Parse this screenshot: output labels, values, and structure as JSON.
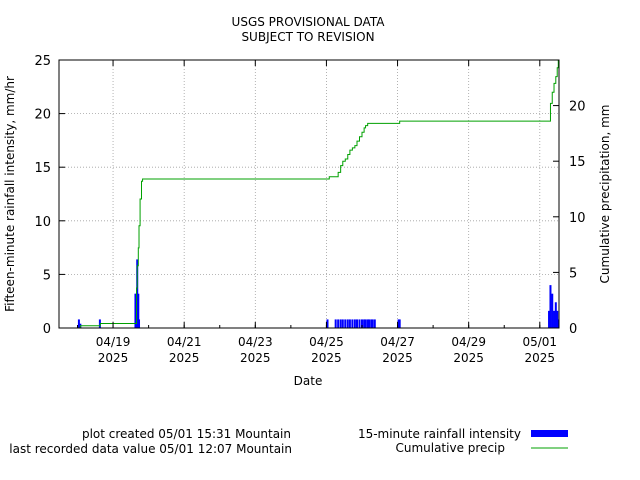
{
  "chart_data": {
    "type": "bar+line",
    "title_lines": [
      "USGS PROVISIONAL DATA",
      "SUBJECT TO REVISION"
    ],
    "xlabel": "Date",
    "ylabel_left": "Fifteen-minute rainfall intensity, mm/hr",
    "ylabel_right": "Cumulative precipitation, mm",
    "x_range_days": [
      0,
      14.06
    ],
    "ylim_left": [
      0,
      25
    ],
    "ylim_right": [
      0,
      24.1
    ],
    "yticks_left": [
      0,
      5,
      10,
      15,
      20,
      25
    ],
    "yticks_right": [
      0,
      5,
      10,
      15,
      20
    ],
    "x_ticks": [
      {
        "day": 1.52,
        "label1": "04/19",
        "label2": "2025"
      },
      {
        "day": 3.52,
        "label1": "04/21",
        "label2": "2025"
      },
      {
        "day": 5.52,
        "label1": "04/23",
        "label2": "2025"
      },
      {
        "day": 7.52,
        "label1": "04/25",
        "label2": "2025"
      },
      {
        "day": 9.52,
        "label1": "04/27",
        "label2": "2025"
      },
      {
        "day": 11.52,
        "label1": "04/29",
        "label2": "2025"
      },
      {
        "day": 13.52,
        "label1": "05/01",
        "label2": "2025"
      }
    ],
    "grid": true,
    "series": [
      {
        "name": "15-minute rainfall intensity",
        "kind": "bar",
        "color": "#0000ff",
        "points": [
          [
            0.56,
            0.8
          ],
          [
            0.6,
            0.4
          ],
          [
            1.15,
            0.8
          ],
          [
            2.15,
            3.2
          ],
          [
            2.18,
            3.2
          ],
          [
            2.2,
            6.4
          ],
          [
            2.23,
            3.2
          ],
          [
            2.25,
            0.8
          ],
          [
            7.55,
            0.8
          ],
          [
            7.78,
            0.8
          ],
          [
            7.85,
            0.8
          ],
          [
            7.92,
            0.8
          ],
          [
            7.98,
            0.8
          ],
          [
            8.05,
            0.8
          ],
          [
            8.12,
            0.8
          ],
          [
            8.18,
            0.8
          ],
          [
            8.25,
            0.8
          ],
          [
            8.32,
            0.8
          ],
          [
            8.38,
            0.8
          ],
          [
            8.45,
            0.8
          ],
          [
            8.52,
            0.8
          ],
          [
            8.58,
            0.8
          ],
          [
            8.62,
            0.8
          ],
          [
            8.68,
            0.8
          ],
          [
            8.72,
            0.8
          ],
          [
            8.78,
            0.8
          ],
          [
            8.82,
            0.8
          ],
          [
            8.88,
            0.8
          ],
          [
            9.55,
            0.8
          ],
          [
            9.58,
            0.8
          ],
          [
            13.78,
            1.6
          ],
          [
            13.82,
            4.0
          ],
          [
            13.87,
            3.2
          ],
          [
            13.92,
            1.6
          ],
          [
            13.97,
            2.4
          ],
          [
            14.01,
            1.6
          ],
          [
            14.04,
            0.8
          ]
        ]
      },
      {
        "name": "Cumulative precip",
        "kind": "line",
        "color": "#00a000",
        "points": [
          [
            0.56,
            0.0
          ],
          [
            0.6,
            0.2
          ],
          [
            1.15,
            0.2
          ],
          [
            1.16,
            0.4
          ],
          [
            2.15,
            0.4
          ],
          [
            2.18,
            3.6
          ],
          [
            2.2,
            5.6
          ],
          [
            2.23,
            7.2
          ],
          [
            2.25,
            9.2
          ],
          [
            2.28,
            11.6
          ],
          [
            2.32,
            13.2
          ],
          [
            2.35,
            13.4
          ],
          [
            7.55,
            13.4
          ],
          [
            7.6,
            13.6
          ],
          [
            7.78,
            13.6
          ],
          [
            7.85,
            14.0
          ],
          [
            7.92,
            14.6
          ],
          [
            7.98,
            15.0
          ],
          [
            8.05,
            15.2
          ],
          [
            8.12,
            15.6
          ],
          [
            8.18,
            16.0
          ],
          [
            8.25,
            16.2
          ],
          [
            8.32,
            16.4
          ],
          [
            8.38,
            16.8
          ],
          [
            8.45,
            17.2
          ],
          [
            8.52,
            17.6
          ],
          [
            8.58,
            18.0
          ],
          [
            8.62,
            18.2
          ],
          [
            8.68,
            18.4
          ],
          [
            9.55,
            18.4
          ],
          [
            9.58,
            18.6
          ],
          [
            13.78,
            18.6
          ],
          [
            13.82,
            20.2
          ],
          [
            13.87,
            21.2
          ],
          [
            13.92,
            22.0
          ],
          [
            13.97,
            22.6
          ],
          [
            14.01,
            23.4
          ],
          [
            14.04,
            24.1
          ]
        ]
      }
    ],
    "legend": [
      {
        "label": "15-minute rainfall intensity",
        "kind": "bar",
        "color": "#0000ff"
      },
      {
        "label": "Cumulative precip",
        "kind": "line",
        "color": "#00a000"
      }
    ],
    "legend_placement": "bottom-right"
  },
  "footer": {
    "plot_created": "plot created 05/01 15:31 Mountain",
    "last_recorded": "last recorded data value 05/01 12:07 Mountain"
  }
}
